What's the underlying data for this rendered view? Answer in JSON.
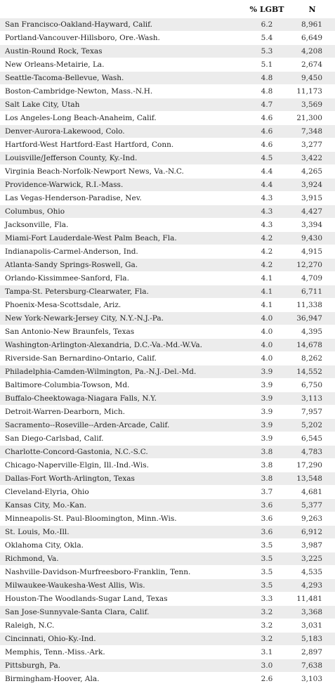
{
  "table": {
    "headers": {
      "metro": "",
      "pct": "% LGBT",
      "n": "N"
    },
    "rows": [
      {
        "metro": "San Francisco-Oakland-Hayward, Calif.",
        "pct": "6.2",
        "n": "8,961"
      },
      {
        "metro": "Portland-Vancouver-Hillsboro, Ore.-Wash.",
        "pct": "5.4",
        "n": "6,649"
      },
      {
        "metro": "Austin-Round Rock, Texas",
        "pct": "5.3",
        "n": "4,208"
      },
      {
        "metro": "New Orleans-Metairie, La.",
        "pct": "5.1",
        "n": "2,674"
      },
      {
        "metro": "Seattle-Tacoma-Bellevue, Wash.",
        "pct": "4.8",
        "n": "9,450"
      },
      {
        "metro": "Boston-Cambridge-Newton, Mass.-N.H.",
        "pct": "4.8",
        "n": "11,173"
      },
      {
        "metro": "Salt Lake City, Utah",
        "pct": "4.7",
        "n": "3,569"
      },
      {
        "metro": "Los Angeles-Long Beach-Anaheim, Calif.",
        "pct": "4.6",
        "n": "21,300"
      },
      {
        "metro": "Denver-Aurora-Lakewood, Colo.",
        "pct": "4.6",
        "n": "7,348"
      },
      {
        "metro": "Hartford-West Hartford-East Hartford, Conn.",
        "pct": "4.6",
        "n": "3,277"
      },
      {
        "metro": "Louisville/Jefferson County, Ky.-Ind.",
        "pct": "4.5",
        "n": "3,422"
      },
      {
        "metro": "Virginia Beach-Norfolk-Newport News, Va.-N.C.",
        "pct": "4.4",
        "n": "4,265"
      },
      {
        "metro": "Providence-Warwick, R.I.-Mass.",
        "pct": "4.4",
        "n": "3,924"
      },
      {
        "metro": "Las Vegas-Henderson-Paradise, Nev.",
        "pct": "4.3",
        "n": "3,915"
      },
      {
        "metro": "Columbus, Ohio",
        "pct": "4.3",
        "n": "4,427"
      },
      {
        "metro": "Jacksonville, Fla.",
        "pct": "4.3",
        "n": "3,394"
      },
      {
        "metro": "Miami-Fort Lauderdale-West Palm Beach, Fla.",
        "pct": "4.2",
        "n": "9,430"
      },
      {
        "metro": "Indianapolis-Carmel-Anderson, Ind.",
        "pct": "4.2",
        "n": "4,915"
      },
      {
        "metro": "Atlanta-Sandy Springs-Roswell, Ga.",
        "pct": "4.2",
        "n": "12,270"
      },
      {
        "metro": "Orlando-Kissimmee-Sanford, Fla.",
        "pct": "4.1",
        "n": "4,709"
      },
      {
        "metro": "Tampa-St. Petersburg-Clearwater, Fla.",
        "pct": "4.1",
        "n": "6,711"
      },
      {
        "metro": "Phoenix-Mesa-Scottsdale, Ariz.",
        "pct": "4.1",
        "n": "11,338"
      },
      {
        "metro": "New York-Newark-Jersey City, N.Y.-N.J.-Pa.",
        "pct": "4.0",
        "n": "36,947"
      },
      {
        "metro": "San Antonio-New Braunfels, Texas",
        "pct": "4.0",
        "n": "4,395"
      },
      {
        "metro": "Washington-Arlington-Alexandria, D.C.-Va.-Md.-W.Va.",
        "pct": "4.0",
        "n": "14,678"
      },
      {
        "metro": "Riverside-San Bernardino-Ontario, Calif.",
        "pct": "4.0",
        "n": "8,262"
      },
      {
        "metro": "Philadelphia-Camden-Wilmington, Pa.-N.J.-Del.-Md.",
        "pct": "3.9",
        "n": "14,552"
      },
      {
        "metro": "Baltimore-Columbia-Towson, Md.",
        "pct": "3.9",
        "n": "6,750"
      },
      {
        "metro": "Buffalo-Cheektowaga-Niagara Falls, N.Y.",
        "pct": "3.9",
        "n": "3,113"
      },
      {
        "metro": "Detroit-Warren-Dearborn, Mich.",
        "pct": "3.9",
        "n": "7,957"
      },
      {
        "metro": "Sacramento--Roseville--Arden-Arcade, Calif.",
        "pct": "3.9",
        "n": "5,202"
      },
      {
        "metro": "San Diego-Carlsbad, Calif.",
        "pct": "3.9",
        "n": "6,545"
      },
      {
        "metro": "Charlotte-Concord-Gastonia, N.C.-S.C.",
        "pct": "3.8",
        "n": "4,783"
      },
      {
        "metro": "Chicago-Naperville-Elgin, Ill.-Ind.-Wis.",
        "pct": "3.8",
        "n": "17,290"
      },
      {
        "metro": "Dallas-Fort Worth-Arlington, Texas",
        "pct": "3.8",
        "n": "13,548"
      },
      {
        "metro": "Cleveland-Elyria, Ohio",
        "pct": "3.7",
        "n": "4,681"
      },
      {
        "metro": "Kansas City, Mo.-Kan.",
        "pct": "3.6",
        "n": "5,377"
      },
      {
        "metro": "Minneapolis-St. Paul-Bloomington, Minn.-Wis.",
        "pct": "3.6",
        "n": "9,263"
      },
      {
        "metro": "St. Louis, Mo.-Ill.",
        "pct": "3.6",
        "n": "6,912"
      },
      {
        "metro": "Oklahoma City, Okla.",
        "pct": "3.5",
        "n": "3,987"
      },
      {
        "metro": "Richmond, Va.",
        "pct": "3.5",
        "n": "3,225"
      },
      {
        "metro": "Nashville-Davidson-Murfreesboro-Franklin, Tenn.",
        "pct": "3.5",
        "n": "4,535"
      },
      {
        "metro": "Milwaukee-Waukesha-West Allis, Wis.",
        "pct": "3.5",
        "n": "4,293"
      },
      {
        "metro": "Houston-The Woodlands-Sugar Land, Texas",
        "pct": "3.3",
        "n": "11,481"
      },
      {
        "metro": "San Jose-Sunnyvale-Santa Clara, Calif.",
        "pct": "3.2",
        "n": "3,368"
      },
      {
        "metro": "Raleigh, N.C.",
        "pct": "3.2",
        "n": "3,031"
      },
      {
        "metro": "Cincinnati, Ohio-Ky.-Ind.",
        "pct": "3.2",
        "n": "5,183"
      },
      {
        "metro": "Memphis, Tenn.-Miss.-Ark.",
        "pct": "3.1",
        "n": "2,897"
      },
      {
        "metro": "Pittsburgh, Pa.",
        "pct": "3.0",
        "n": "7,638"
      },
      {
        "metro": "Birmingham-Hoover, Ala.",
        "pct": "2.6",
        "n": "3,103"
      }
    ]
  }
}
